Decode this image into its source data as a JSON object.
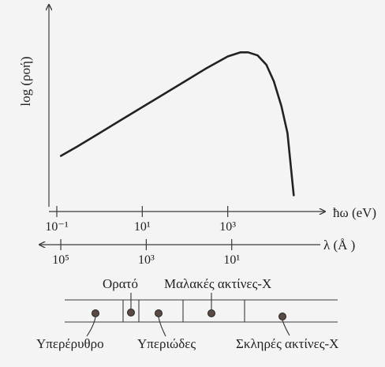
{
  "chart_data": {
    "type": "line",
    "ylabel": "log (ροή)",
    "xlabel": "ħω (eV)",
    "x_scale": "log",
    "xlim": [
      0.1,
      100000
    ],
    "x_ticks": [
      "10⁻¹",
      "10¹",
      "10³"
    ],
    "secondary_axis": {
      "label": "λ (Å )",
      "ticks": [
        "10⁵",
        "10³",
        "10¹"
      ]
    },
    "series": [
      {
        "x": [
          0.125,
          0.3,
          1,
          3,
          10,
          30,
          100,
          300,
          1000,
          2000,
          3000,
          5000,
          8000,
          12000,
          18000,
          25000,
          35000
        ],
        "y": [
          0.0,
          0.09,
          0.22,
          0.34,
          0.47,
          0.59,
          0.72,
          0.84,
          0.96,
          1.0,
          1.0,
          0.97,
          0.88,
          0.72,
          0.48,
          0.22,
          -0.38
        ]
      }
    ],
    "ylim": [
      -0.4,
      1.2
    ],
    "grid": false,
    "spectrum": {
      "regions": [
        {
          "label": "Ορατό"
        },
        {
          "label": "Μαλακές ακτίνες-Χ"
        },
        {
          "label": "Υπερέρυθρο"
        },
        {
          "label": "Υπεριώδες"
        },
        {
          "label": "Σκληρές ακτίνες-Χ"
        }
      ]
    }
  }
}
